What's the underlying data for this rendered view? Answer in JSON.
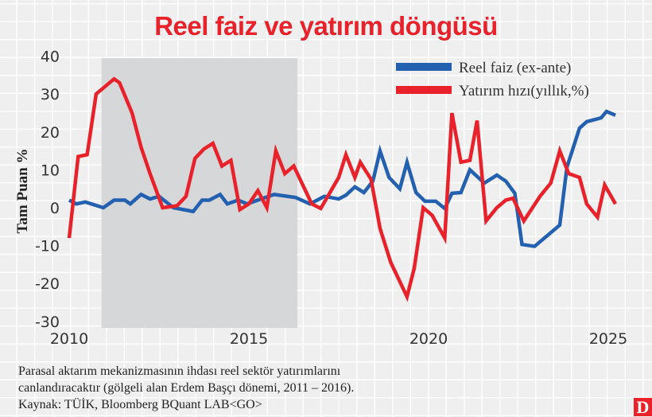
{
  "chart_data": {
    "type": "line",
    "title": "Reel faiz ve yatırım döngüsü",
    "ylabel": "Tam Puan %",
    "xlabel": "",
    "ylim": [
      -30,
      40
    ],
    "xlim": [
      2010,
      2025.5
    ],
    "yticks": [
      40,
      30,
      20,
      10,
      0,
      -10,
      -20,
      -30
    ],
    "xticks": [
      2010,
      2015,
      2020,
      2025
    ],
    "grid": true,
    "legend_position": "top-right",
    "shaded_region": {
      "from": 2010.9,
      "to": 2016.35,
      "color": "#d6d7d9"
    },
    "series": [
      {
        "name": "Reel faiz (ex-ante)",
        "color": "#2360b0",
        "x": [
          2010,
          2010.2,
          2010.45,
          2010.95,
          2011.25,
          2011.55,
          2011.7,
          2012.0,
          2012.25,
          2012.5,
          2012.9,
          2013.45,
          2013.7,
          2013.9,
          2014.2,
          2014.4,
          2014.7,
          2014.95,
          2015.7,
          2016.3,
          2016.7,
          2017.1,
          2017.5,
          2017.7,
          2017.95,
          2018.2,
          2018.45,
          2018.65,
          2018.9,
          2019.2,
          2019.4,
          2019.65,
          2019.9,
          2020.2,
          2020.45,
          2020.65,
          2020.9,
          2021.15,
          2021.55,
          2021.9,
          2022.15,
          2022.4,
          2022.6,
          2022.95,
          2023.65,
          2023.85,
          2024.2,
          2024.4,
          2024.8,
          2024.95,
          2025.2
        ],
        "values": [
          2,
          1,
          1.5,
          0,
          2,
          2,
          1,
          3.5,
          2.3,
          3,
          0,
          -1,
          2,
          2,
          3.5,
          1,
          2,
          1,
          3.5,
          2.7,
          1,
          3,
          2.3,
          3.3,
          5.5,
          4,
          7,
          15,
          8,
          5,
          12,
          4,
          1.7,
          1.7,
          -0.2,
          3.8,
          4,
          10,
          6.5,
          8.6,
          7,
          3.8,
          -9.7,
          -10.2,
          -4.6,
          10.7,
          21,
          22.7,
          23.7,
          25.4,
          24.4
        ]
      },
      {
        "name": "Yatırım hızı(yıllık,%)",
        "color": "#e8212a",
        "x": [
          2010,
          2010.25,
          2010.5,
          2010.75,
          2011.0,
          2011.25,
          2011.4,
          2011.75,
          2012.0,
          2012.25,
          2012.6,
          2013.0,
          2013.25,
          2013.5,
          2013.75,
          2014.0,
          2014.25,
          2014.5,
          2014.75,
          2015.0,
          2015.25,
          2015.5,
          2015.75,
          2016.0,
          2016.25,
          2016.75,
          2017.0,
          2017.5,
          2017.7,
          2017.95,
          2018.1,
          2018.4,
          2018.65,
          2018.95,
          2019.4,
          2019.6,
          2019.85,
          2020.1,
          2020.45,
          2020.65,
          2020.9,
          2021.15,
          2021.35,
          2021.6,
          2021.9,
          2022.15,
          2022.35,
          2022.65,
          2023.1,
          2023.4,
          2023.65,
          2023.9,
          2024.2,
          2024.4,
          2024.7,
          2024.9,
          2025.2
        ],
        "values": [
          -8,
          13.5,
          14,
          30,
          32,
          34,
          33,
          25,
          16,
          9,
          0,
          0.5,
          3,
          13,
          15.5,
          17,
          11,
          12.5,
          -0.5,
          1,
          4.5,
          0,
          15,
          9,
          11,
          1,
          -0.2,
          8,
          14,
          8,
          12,
          7.5,
          -5.5,
          -14.5,
          -23.5,
          -16,
          0,
          -2,
          -8,
          25,
          12,
          12.5,
          23,
          -3.5,
          0,
          2,
          2.5,
          -3.5,
          3,
          6.5,
          15,
          9,
          8,
          1,
          -2.5,
          6,
          1
        ]
      }
    ]
  },
  "notes": {
    "line1": "Parasal aktarım mekanizmasının ihdası reel sektör yatırımlarını",
    "line2": "canlandıracaktır (gölgeli alan Erdem Başçı dönemi, 2011 – 2016).",
    "source": "Kaynak: TÜİK, Bloomberg BQuant LAB<GO>"
  },
  "logo": "D"
}
